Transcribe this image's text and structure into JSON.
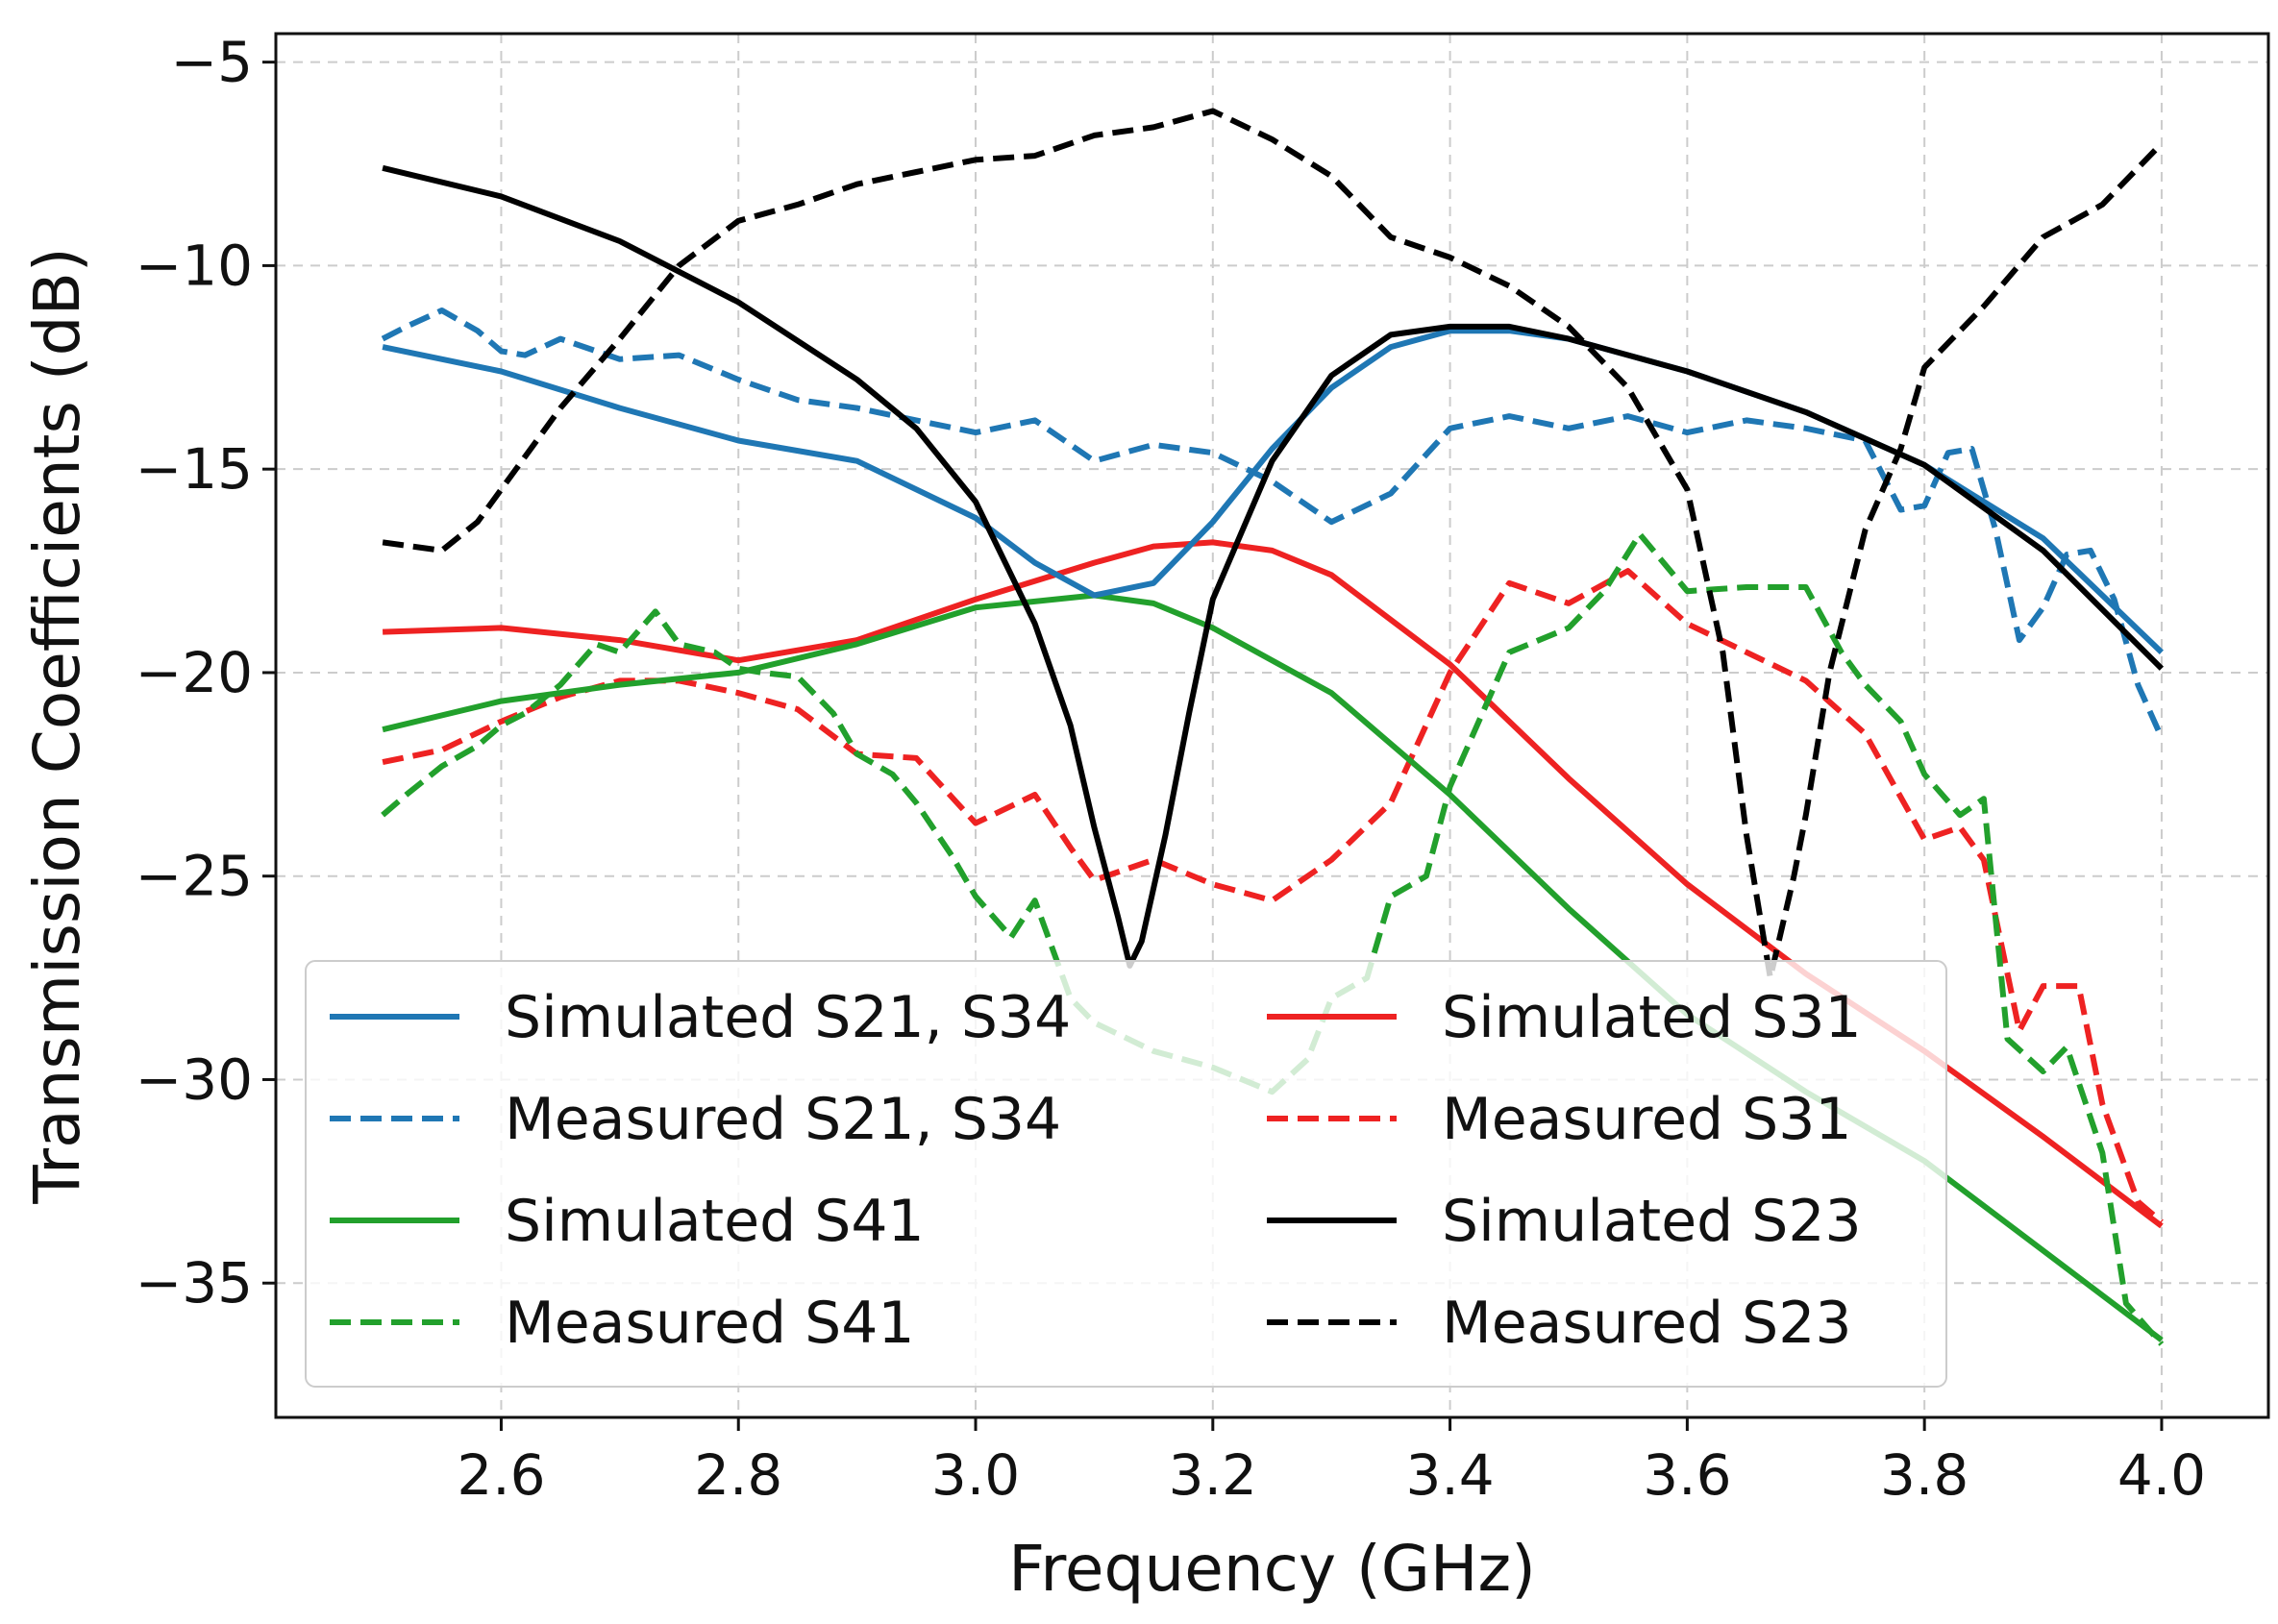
{
  "chart_data": {
    "type": "line",
    "title": "",
    "xlabel": "Frequency (GHz)",
    "ylabel": "Transmission Coefficients (dB)",
    "xlim": [
      2.41,
      4.09
    ],
    "ylim": [
      -38.3,
      -4.3
    ],
    "grid": true,
    "legend_position": "lower-left",
    "xticks": [
      2.6,
      2.8,
      3.0,
      3.2,
      3.4,
      3.6,
      3.8,
      4.0
    ],
    "xtick_labels": [
      "2.6",
      "2.8",
      "3.0",
      "3.2",
      "3.4",
      "3.6",
      "3.8",
      "4.0"
    ],
    "yticks": [
      -5,
      -10,
      -15,
      -20,
      -25,
      -30,
      -35
    ],
    "ytick_labels": [
      "−5",
      "−10",
      "−15",
      "−20",
      "−25",
      "−30",
      "−35"
    ],
    "series": [
      {
        "name": "Simulated S21, S34",
        "color": "#1f77b4",
        "style": "solid",
        "x": [
          2.5,
          2.6,
          2.7,
          2.8,
          2.9,
          3.0,
          3.05,
          3.1,
          3.15,
          3.2,
          3.25,
          3.3,
          3.35,
          3.4,
          3.45,
          3.5,
          3.6,
          3.7,
          3.8,
          3.9,
          4.0
        ],
        "y": [
          -12.0,
          -12.6,
          -13.5,
          -14.3,
          -14.8,
          -16.2,
          -17.3,
          -18.1,
          -17.8,
          -16.3,
          -14.5,
          -13.0,
          -12.0,
          -11.6,
          -11.6,
          -11.8,
          -12.6,
          -13.6,
          -14.9,
          -16.7,
          -19.5
        ]
      },
      {
        "name": "Measured S21, S34",
        "color": "#1f77b4",
        "style": "dashed",
        "x": [
          2.5,
          2.52,
          2.55,
          2.58,
          2.6,
          2.62,
          2.65,
          2.7,
          2.75,
          2.8,
          2.85,
          2.9,
          2.95,
          3.0,
          3.05,
          3.1,
          3.15,
          3.2,
          3.25,
          3.3,
          3.35,
          3.4,
          3.45,
          3.5,
          3.55,
          3.6,
          3.65,
          3.7,
          3.75,
          3.78,
          3.8,
          3.82,
          3.84,
          3.86,
          3.88,
          3.9,
          3.92,
          3.94,
          3.96,
          3.98,
          4.0
        ],
        "y": [
          -11.8,
          -11.5,
          -11.1,
          -11.6,
          -12.1,
          -12.2,
          -11.8,
          -12.3,
          -12.2,
          -12.8,
          -13.3,
          -13.5,
          -13.8,
          -14.1,
          -13.8,
          -14.8,
          -14.4,
          -14.6,
          -15.3,
          -16.3,
          -15.6,
          -14.0,
          -13.7,
          -14.0,
          -13.7,
          -14.1,
          -13.8,
          -14.0,
          -14.3,
          -16.0,
          -15.9,
          -14.6,
          -14.5,
          -16.5,
          -19.2,
          -18.4,
          -17.1,
          -17.0,
          -18.2,
          -20.3,
          -21.6
        ]
      },
      {
        "name": "Simulated S41",
        "color": "#22a02c",
        "style": "solid",
        "x": [
          2.5,
          2.6,
          2.7,
          2.8,
          2.9,
          3.0,
          3.1,
          3.15,
          3.2,
          3.3,
          3.4,
          3.5,
          3.6,
          3.7,
          3.8,
          3.9,
          4.0
        ],
        "y": [
          -21.4,
          -20.7,
          -20.3,
          -20.0,
          -19.3,
          -18.4,
          -18.1,
          -18.3,
          -18.9,
          -20.5,
          -23.0,
          -25.8,
          -28.4,
          -30.3,
          -32.0,
          -34.2,
          -36.4
        ]
      },
      {
        "name": "Measured S41",
        "color": "#22a02c",
        "style": "dashed",
        "x": [
          2.5,
          2.52,
          2.55,
          2.58,
          2.6,
          2.62,
          2.65,
          2.68,
          2.7,
          2.73,
          2.75,
          2.78,
          2.8,
          2.82,
          2.85,
          2.88,
          2.9,
          2.93,
          2.95,
          2.98,
          3.0,
          3.03,
          3.05,
          3.08,
          3.1,
          3.15,
          3.2,
          3.25,
          3.28,
          3.3,
          3.33,
          3.35,
          3.38,
          3.4,
          3.45,
          3.5,
          3.53,
          3.56,
          3.6,
          3.65,
          3.7,
          3.73,
          3.75,
          3.78,
          3.8,
          3.83,
          3.85,
          3.87,
          3.9,
          3.92,
          3.95,
          3.97,
          4.0
        ],
        "y": [
          -23.5,
          -23.0,
          -22.3,
          -21.8,
          -21.3,
          -21.0,
          -20.3,
          -19.3,
          -19.5,
          -18.5,
          -19.3,
          -19.5,
          -19.9,
          -20.0,
          -20.1,
          -21.0,
          -22.0,
          -22.5,
          -23.2,
          -24.5,
          -25.5,
          -26.5,
          -25.6,
          -28.0,
          -28.6,
          -29.3,
          -29.7,
          -30.3,
          -29.5,
          -28.0,
          -27.5,
          -25.5,
          -25.0,
          -22.8,
          -19.5,
          -18.9,
          -18.0,
          -16.6,
          -18.0,
          -17.9,
          -17.9,
          -19.5,
          -20.3,
          -21.2,
          -22.5,
          -23.5,
          -23.1,
          -29.0,
          -29.8,
          -29.2,
          -31.8,
          -35.5,
          -36.5
        ]
      },
      {
        "name": "Simulated S31",
        "color": "#ee2222",
        "style": "solid",
        "x": [
          2.5,
          2.6,
          2.7,
          2.8,
          2.9,
          3.0,
          3.1,
          3.15,
          3.2,
          3.25,
          3.3,
          3.4,
          3.5,
          3.6,
          3.7,
          3.8,
          3.9,
          4.0
        ],
        "y": [
          -19.0,
          -18.9,
          -19.2,
          -19.7,
          -19.2,
          -18.2,
          -17.3,
          -16.9,
          -16.8,
          -17.0,
          -17.6,
          -19.8,
          -22.6,
          -25.2,
          -27.4,
          -29.3,
          -31.4,
          -33.6
        ]
      },
      {
        "name": "Measured S31",
        "color": "#ee2222",
        "style": "dashed",
        "x": [
          2.5,
          2.55,
          2.6,
          2.65,
          2.7,
          2.75,
          2.8,
          2.85,
          2.9,
          2.95,
          3.0,
          3.05,
          3.08,
          3.1,
          3.15,
          3.2,
          3.25,
          3.3,
          3.35,
          3.4,
          3.45,
          3.5,
          3.55,
          3.6,
          3.65,
          3.7,
          3.75,
          3.8,
          3.83,
          3.85,
          3.88,
          3.9,
          3.93,
          3.95,
          3.98,
          4.0
        ],
        "y": [
          -22.2,
          -21.9,
          -21.2,
          -20.6,
          -20.2,
          -20.2,
          -20.5,
          -20.9,
          -22.0,
          -22.1,
          -23.7,
          -23.0,
          -24.3,
          -25.1,
          -24.6,
          -25.2,
          -25.6,
          -24.6,
          -23.2,
          -20.0,
          -17.8,
          -18.3,
          -17.5,
          -18.8,
          -19.5,
          -20.2,
          -21.5,
          -24.1,
          -23.8,
          -24.6,
          -28.8,
          -27.7,
          -27.7,
          -30.6,
          -33.0,
          -33.5
        ]
      },
      {
        "name": "Simulated S23",
        "color": "#000000",
        "style": "solid",
        "x": [
          2.5,
          2.6,
          2.7,
          2.8,
          2.9,
          2.95,
          3.0,
          3.05,
          3.08,
          3.1,
          3.12,
          3.13,
          3.14,
          3.16,
          3.18,
          3.2,
          3.25,
          3.3,
          3.35,
          3.4,
          3.45,
          3.5,
          3.6,
          3.7,
          3.8,
          3.9,
          4.0
        ],
        "y": [
          -7.6,
          -8.3,
          -9.4,
          -10.9,
          -12.8,
          -14.0,
          -15.8,
          -18.8,
          -21.3,
          -23.8,
          -26.0,
          -27.2,
          -26.6,
          -24.0,
          -21.0,
          -18.2,
          -14.8,
          -12.7,
          -11.7,
          -11.5,
          -11.5,
          -11.8,
          -12.6,
          -13.6,
          -14.9,
          -17.0,
          -19.9
        ]
      },
      {
        "name": "Measured S23",
        "color": "#000000",
        "style": "dashed",
        "x": [
          2.5,
          2.55,
          2.58,
          2.6,
          2.65,
          2.7,
          2.75,
          2.8,
          2.85,
          2.9,
          2.95,
          3.0,
          3.05,
          3.1,
          3.15,
          3.2,
          3.25,
          3.3,
          3.35,
          3.4,
          3.45,
          3.5,
          3.55,
          3.6,
          3.63,
          3.65,
          3.67,
          3.69,
          3.7,
          3.72,
          3.75,
          3.78,
          3.8,
          3.85,
          3.9,
          3.95,
          4.0
        ],
        "y": [
          -16.8,
          -17.0,
          -16.3,
          -15.5,
          -13.5,
          -11.8,
          -10.0,
          -8.9,
          -8.5,
          -8.0,
          -7.7,
          -7.4,
          -7.3,
          -6.8,
          -6.6,
          -6.2,
          -6.9,
          -7.8,
          -9.3,
          -9.8,
          -10.5,
          -11.5,
          -13.0,
          -15.5,
          -19.5,
          -24.0,
          -27.5,
          -25.0,
          -23.5,
          -20.0,
          -16.5,
          -14.5,
          -12.5,
          -11.0,
          -9.3,
          -8.5,
          -7.0
        ]
      }
    ]
  }
}
